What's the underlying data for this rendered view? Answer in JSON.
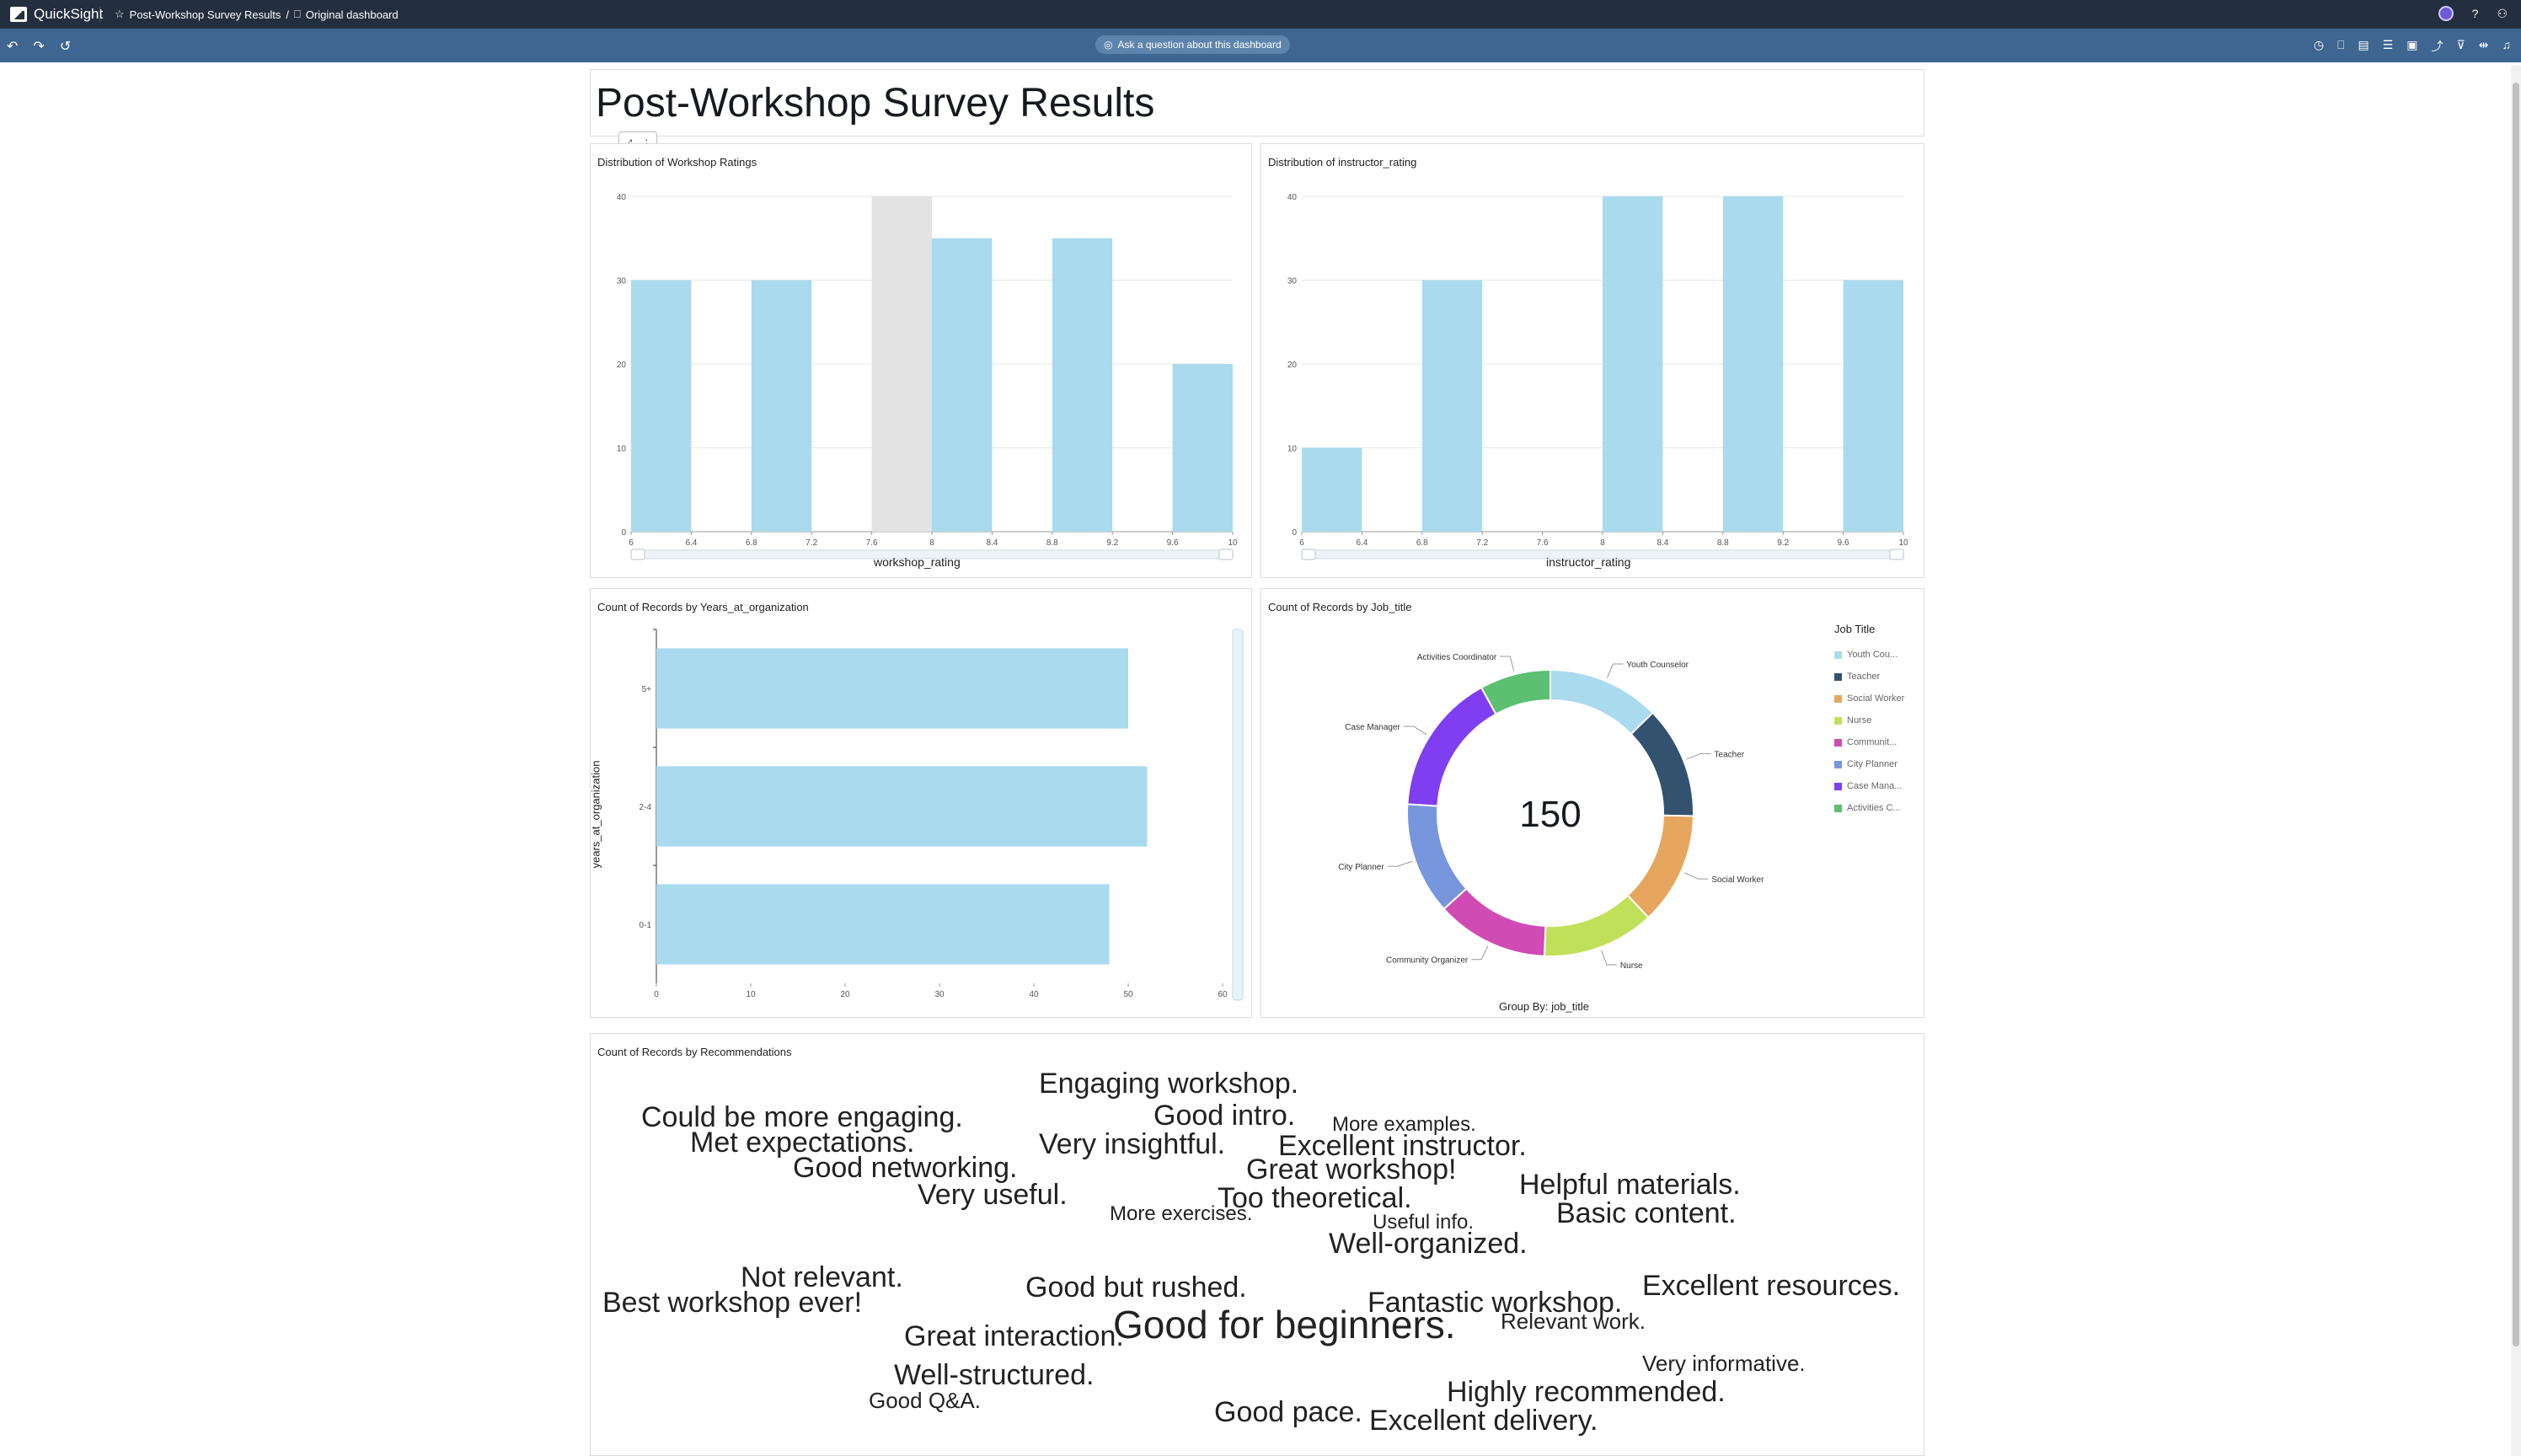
{
  "app": {
    "name": "QuickSight",
    "breadcrumb_dashboard": "Post-Workshop Survey Results",
    "breadcrumb_sep": "/",
    "breadcrumb_view": "Original dashboard"
  },
  "toolbar": {
    "ask_label": "Ask a question about this dashboard"
  },
  "page": {
    "title": "Post-Workshop Survey Results"
  },
  "workshop_chart": {
    "title": "Distribution of Workshop Ratings",
    "xlabel": "workshop_rating",
    "type": "bar",
    "bins": [
      [
        6,
        6.4
      ],
      [
        6.8,
        7.2
      ],
      [
        7.6,
        8
      ],
      [
        8,
        8.4
      ],
      [
        8.8,
        9.2
      ],
      [
        9.6,
        10
      ]
    ],
    "values": [
      30,
      30,
      0,
      35,
      35,
      20
    ],
    "highlight_bin": [
      7.6,
      8
    ],
    "x_ticks": [
      "6",
      "6.4",
      "6.8",
      "7.2",
      "7.6",
      "8",
      "8.4",
      "8.8",
      "9.2",
      "9.6",
      "10"
    ],
    "y_ticks": [
      "0",
      "10",
      "20",
      "30",
      "40"
    ],
    "ylim": [
      0,
      40
    ],
    "xlim": [
      6,
      10
    ]
  },
  "instructor_chart": {
    "title": "Distribution of instructor_rating",
    "xlabel": "instructor_rating",
    "type": "bar",
    "bins": [
      [
        6,
        6.4
      ],
      [
        6.8,
        7.2
      ],
      [
        8,
        8.4
      ],
      [
        8.8,
        9.2
      ],
      [
        9.6,
        10
      ]
    ],
    "values": [
      10,
      30,
      40,
      40,
      30
    ],
    "x_ticks": [
      "6",
      "6.4",
      "6.8",
      "7.2",
      "7.6",
      "8",
      "8.4",
      "8.8",
      "9.2",
      "9.6",
      "10"
    ],
    "y_ticks": [
      "0",
      "10",
      "20",
      "30",
      "40"
    ],
    "ylim": [
      0,
      40
    ],
    "xlim": [
      6,
      10
    ]
  },
  "years_chart": {
    "title": "Count of Records by Years_at_organization",
    "ylabel": "years_at_organization",
    "type": "bar",
    "categories": [
      "5+",
      "2-4",
      "0-1"
    ],
    "values": [
      50,
      52,
      48
    ],
    "x_ticks": [
      "0",
      "10",
      "20",
      "30",
      "40",
      "50",
      "60"
    ],
    "xlim": [
      0,
      60
    ]
  },
  "job_chart": {
    "title": "Count of Records by Job_title",
    "center_value": "150",
    "group_by": "Group By: job_title",
    "legend_title": "Job Title",
    "type": "pie",
    "slices": [
      {
        "label": "Youth Counselor",
        "legend": "Youth Cou...",
        "value": 19,
        "color": "#aadaee"
      },
      {
        "label": "Teacher",
        "legend": "Teacher",
        "value": 19,
        "color": "#33526f"
      },
      {
        "label": "Social Worker",
        "legend": "Social Worker",
        "value": 19,
        "color": "#e6a65d"
      },
      {
        "label": "Nurse",
        "legend": "Nurse",
        "value": 19,
        "color": "#c1e05a"
      },
      {
        "label": "Community Organizer",
        "legend": "Communit...",
        "value": 19,
        "color": "#d04cb4"
      },
      {
        "label": "City Planner",
        "legend": "City Planner",
        "value": 19,
        "color": "#7896dd"
      },
      {
        "label": "Case Manager",
        "legend": "Case Mana...",
        "value": 24,
        "color": "#7f3ff0"
      },
      {
        "label": "Activities Coordinator",
        "legend": "Activities C...",
        "value": 12,
        "color": "#5cbf72"
      }
    ]
  },
  "recommendations": {
    "title": "Count of Records by Recommendations",
    "words": [
      {
        "text": "Engaging workshop.",
        "size": 34
      },
      {
        "text": "Could be more engaging.",
        "size": 34
      },
      {
        "text": "Good intro.",
        "size": 34
      },
      {
        "text": "More examples.",
        "size": 24
      },
      {
        "text": "Met expectations.",
        "size": 34
      },
      {
        "text": "Very insightful.",
        "size": 34
      },
      {
        "text": "Excellent instructor.",
        "size": 34
      },
      {
        "text": "Good networking.",
        "size": 34
      },
      {
        "text": "Great workshop!",
        "size": 34
      },
      {
        "text": "Helpful materials.",
        "size": 34
      },
      {
        "text": "Very useful.",
        "size": 34
      },
      {
        "text": "Too theoretical.",
        "size": 34
      },
      {
        "text": "More exercises.",
        "size": 24
      },
      {
        "text": "Basic content.",
        "size": 34
      },
      {
        "text": "Useful info.",
        "size": 24
      },
      {
        "text": "Well-organized.",
        "size": 34
      },
      {
        "text": "Not relevant.",
        "size": 34
      },
      {
        "text": "Good but rushed.",
        "size": 34
      },
      {
        "text": "Excellent resources.",
        "size": 34
      },
      {
        "text": "Fantastic workshop.",
        "size": 34
      },
      {
        "text": "Best workshop ever!",
        "size": 34
      },
      {
        "text": "Good for beginners.",
        "size": 46
      },
      {
        "text": "Relevant work.",
        "size": 26
      },
      {
        "text": "Great interaction.",
        "size": 34
      },
      {
        "text": "Very informative.",
        "size": 26
      },
      {
        "text": "Well-structured.",
        "size": 34
      },
      {
        "text": "Highly recommended.",
        "size": 34
      },
      {
        "text": "Good Q&A.",
        "size": 26
      },
      {
        "text": "Good pace.",
        "size": 34
      },
      {
        "text": "Excellent delivery.",
        "size": 34
      }
    ]
  }
}
